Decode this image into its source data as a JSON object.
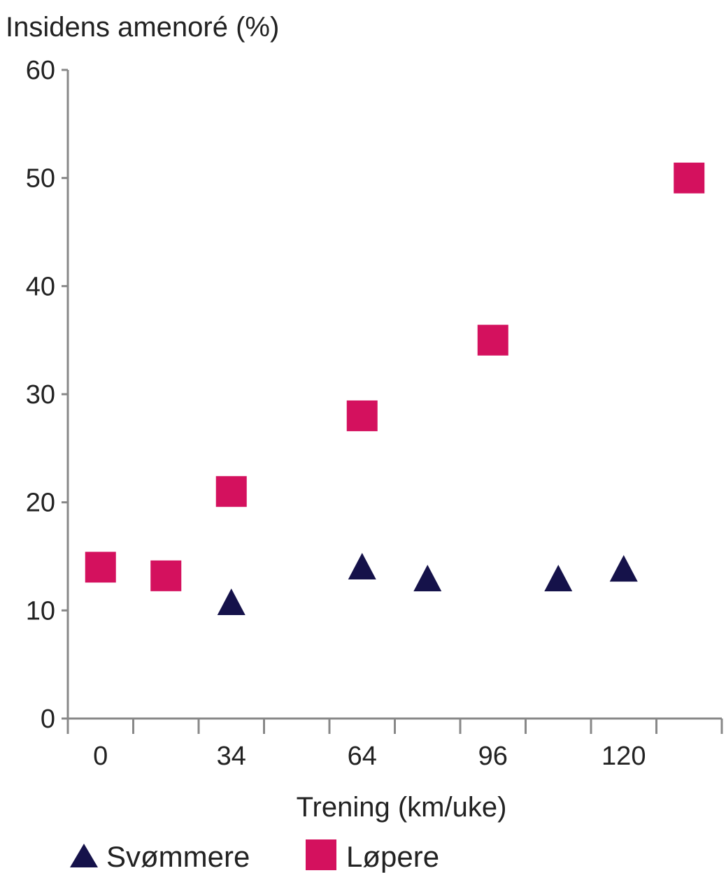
{
  "chart_data": {
    "type": "scatter",
    "title": "",
    "ylabel": "Insidens amenoré (%)",
    "xlabel": "Trening (km/uke)",
    "ylim": [
      0,
      60
    ],
    "y_ticks": [
      "0",
      "10",
      "20",
      "30",
      "40",
      "50",
      "60"
    ],
    "x_categories": [
      "0",
      "",
      "34",
      "",
      "64",
      "",
      "96",
      "",
      "120",
      ""
    ],
    "grid": false,
    "legend_placement": "bottom-left",
    "series": [
      {
        "name": "Svømmere",
        "marker": "triangle",
        "color": "#15124a",
        "points": [
          {
            "pos": 2,
            "y": 10.5
          },
          {
            "pos": 4,
            "y": 13.8
          },
          {
            "pos": 5,
            "y": 12.7
          },
          {
            "pos": 7,
            "y": 12.7
          },
          {
            "pos": 8,
            "y": 13.6
          }
        ]
      },
      {
        "name": "Løpere",
        "marker": "square",
        "color": "#d4115e",
        "points": [
          {
            "pos": 0,
            "y": 14.0
          },
          {
            "pos": 1,
            "y": 13.2
          },
          {
            "pos": 2,
            "y": 21.0
          },
          {
            "pos": 4,
            "y": 28.0
          },
          {
            "pos": 6,
            "y": 35.0
          },
          {
            "pos": 9,
            "y": 50.0
          }
        ]
      }
    ]
  }
}
